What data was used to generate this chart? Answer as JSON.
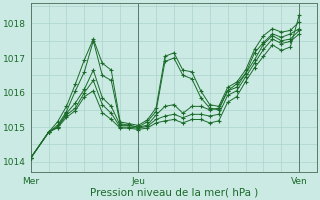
{
  "xlabel": "Pression niveau de la mer( hPa )",
  "bg_color": "#cceae4",
  "grid_color": "#aad4cc",
  "line_color": "#1a6b2a",
  "ylim": [
    1013.7,
    1018.6
  ],
  "xlim": [
    0,
    96
  ],
  "xtick_positions": [
    0,
    36,
    90
  ],
  "xtick_labels": [
    "Mer",
    "Jeu",
    "Ven"
  ],
  "ytick_positions": [
    1014,
    1015,
    1016,
    1017,
    1018
  ],
  "series": [
    [
      [
        0,
        1014.1
      ],
      [
        6,
        1014.85
      ],
      [
        9,
        1015.15
      ],
      [
        12,
        1015.6
      ],
      [
        15,
        1016.25
      ],
      [
        18,
        1016.95
      ],
      [
        21,
        1017.55
      ],
      [
        24,
        1016.85
      ],
      [
        27,
        1016.65
      ],
      [
        30,
        1015.15
      ],
      [
        33,
        1015.1
      ],
      [
        36,
        1015.05
      ],
      [
        39,
        1015.2
      ],
      [
        42,
        1015.55
      ],
      [
        45,
        1017.05
      ],
      [
        48,
        1017.15
      ],
      [
        51,
        1016.65
      ],
      [
        54,
        1016.6
      ],
      [
        57,
        1016.05
      ],
      [
        60,
        1015.65
      ],
      [
        63,
        1015.6
      ],
      [
        66,
        1016.15
      ],
      [
        69,
        1016.3
      ],
      [
        72,
        1016.65
      ],
      [
        75,
        1017.25
      ],
      [
        78,
        1017.65
      ],
      [
        81,
        1017.85
      ],
      [
        84,
        1017.75
      ],
      [
        87,
        1017.8
      ],
      [
        90,
        1018.05
      ]
    ],
    [
      [
        0,
        1014.1
      ],
      [
        6,
        1014.85
      ],
      [
        9,
        1015.05
      ],
      [
        12,
        1015.45
      ],
      [
        15,
        1016.05
      ],
      [
        18,
        1016.6
      ],
      [
        21,
        1017.5
      ],
      [
        24,
        1016.5
      ],
      [
        27,
        1016.35
      ],
      [
        30,
        1015.1
      ],
      [
        33,
        1015.05
      ],
      [
        36,
        1015.0
      ],
      [
        39,
        1015.15
      ],
      [
        42,
        1015.45
      ],
      [
        45,
        1016.9
      ],
      [
        48,
        1017.0
      ],
      [
        51,
        1016.5
      ],
      [
        54,
        1016.4
      ],
      [
        57,
        1015.85
      ],
      [
        60,
        1015.55
      ],
      [
        63,
        1015.5
      ],
      [
        66,
        1016.05
      ],
      [
        69,
        1016.25
      ],
      [
        72,
        1016.55
      ],
      [
        75,
        1017.15
      ],
      [
        78,
        1017.45
      ],
      [
        81,
        1017.7
      ],
      [
        84,
        1017.6
      ],
      [
        87,
        1017.7
      ],
      [
        90,
        1017.85
      ]
    ],
    [
      [
        0,
        1014.1
      ],
      [
        6,
        1014.85
      ],
      [
        9,
        1015.0
      ],
      [
        12,
        1015.4
      ],
      [
        15,
        1015.7
      ],
      [
        18,
        1016.1
      ],
      [
        21,
        1016.65
      ],
      [
        24,
        1015.85
      ],
      [
        27,
        1015.6
      ],
      [
        30,
        1015.05
      ],
      [
        33,
        1015.05
      ],
      [
        36,
        1015.0
      ],
      [
        39,
        1015.05
      ],
      [
        42,
        1015.35
      ],
      [
        45,
        1015.6
      ],
      [
        48,
        1015.65
      ],
      [
        51,
        1015.4
      ],
      [
        54,
        1015.6
      ],
      [
        57,
        1015.6
      ],
      [
        60,
        1015.5
      ],
      [
        63,
        1015.55
      ],
      [
        66,
        1016.05
      ],
      [
        69,
        1016.15
      ],
      [
        72,
        1016.55
      ],
      [
        75,
        1016.95
      ],
      [
        78,
        1017.4
      ],
      [
        81,
        1017.65
      ],
      [
        84,
        1017.5
      ],
      [
        87,
        1017.55
      ],
      [
        90,
        1017.8
      ]
    ],
    [
      [
        0,
        1014.1
      ],
      [
        6,
        1014.85
      ],
      [
        9,
        1015.0
      ],
      [
        12,
        1015.35
      ],
      [
        15,
        1015.55
      ],
      [
        18,
        1016.0
      ],
      [
        21,
        1016.35
      ],
      [
        24,
        1015.65
      ],
      [
        27,
        1015.4
      ],
      [
        30,
        1015.0
      ],
      [
        33,
        1015.0
      ],
      [
        36,
        1014.97
      ],
      [
        39,
        1015.02
      ],
      [
        42,
        1015.22
      ],
      [
        45,
        1015.32
      ],
      [
        48,
        1015.37
      ],
      [
        51,
        1015.27
      ],
      [
        54,
        1015.37
      ],
      [
        57,
        1015.37
      ],
      [
        60,
        1015.32
      ],
      [
        63,
        1015.37
      ],
      [
        66,
        1015.92
      ],
      [
        69,
        1016.05
      ],
      [
        72,
        1016.45
      ],
      [
        75,
        1016.85
      ],
      [
        78,
        1017.25
      ],
      [
        81,
        1017.55
      ],
      [
        84,
        1017.42
      ],
      [
        87,
        1017.48
      ],
      [
        90,
        1017.7
      ]
    ],
    [
      [
        0,
        1014.1
      ],
      [
        6,
        1014.85
      ],
      [
        9,
        1014.98
      ],
      [
        12,
        1015.28
      ],
      [
        15,
        1015.48
      ],
      [
        18,
        1015.88
      ],
      [
        21,
        1016.05
      ],
      [
        24,
        1015.42
      ],
      [
        27,
        1015.22
      ],
      [
        30,
        1014.97
      ],
      [
        33,
        1014.97
      ],
      [
        36,
        1014.93
      ],
      [
        39,
        1014.97
      ],
      [
        42,
        1015.12
      ],
      [
        45,
        1015.18
      ],
      [
        48,
        1015.22
      ],
      [
        51,
        1015.12
      ],
      [
        54,
        1015.22
      ],
      [
        57,
        1015.22
      ],
      [
        60,
        1015.12
      ],
      [
        63,
        1015.18
      ],
      [
        66,
        1015.72
      ],
      [
        69,
        1015.88
      ],
      [
        72,
        1016.32
      ],
      [
        75,
        1016.72
      ],
      [
        78,
        1017.05
      ],
      [
        81,
        1017.38
      ],
      [
        84,
        1017.22
      ],
      [
        87,
        1017.32
      ],
      [
        90,
        1018.25
      ]
    ]
  ]
}
